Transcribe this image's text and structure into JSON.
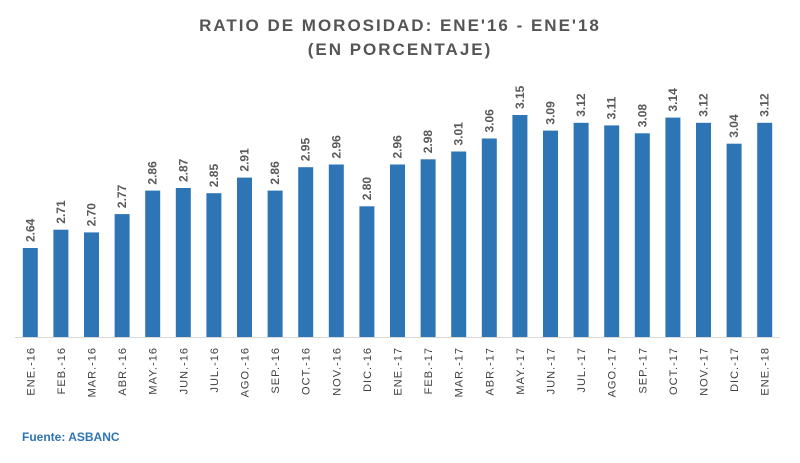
{
  "chart_data": {
    "type": "bar",
    "title": "RATIO DE MOROSIDAD: ENE'16 - ENE'18",
    "subtitle": "(EN PORCENTAJE)",
    "xlabel": "",
    "ylabel": "",
    "categories": [
      "ENE.-16",
      "FEB.-16",
      "MAR.-16",
      "ABR.-16",
      "MAY.-16",
      "JUN.-16",
      "JUL.-16",
      "AGO.-16",
      "SEP.-16",
      "OCT.-16",
      "NOV.-16",
      "DIC.-16",
      "ENE.-17",
      "FEB.-17",
      "MAR.-17",
      "ABR.-17",
      "MAY.-17",
      "JUN.-17",
      "JUL.-17",
      "AGO.-17",
      "SEP.-17",
      "OCT.-17",
      "NOV.-17",
      "DIC.-17",
      "ENE.-18"
    ],
    "values": [
      2.64,
      2.71,
      2.7,
      2.77,
      2.86,
      2.87,
      2.85,
      2.91,
      2.86,
      2.95,
      2.96,
      2.8,
      2.96,
      2.98,
      3.01,
      3.06,
      3.15,
      3.09,
      3.12,
      3.11,
      3.08,
      3.14,
      3.12,
      3.04,
      3.12
    ],
    "bar_color": "#2e75b6",
    "label_color": "#595959",
    "grid": false,
    "legend": "none"
  },
  "source": "Fuente: ASBANC"
}
